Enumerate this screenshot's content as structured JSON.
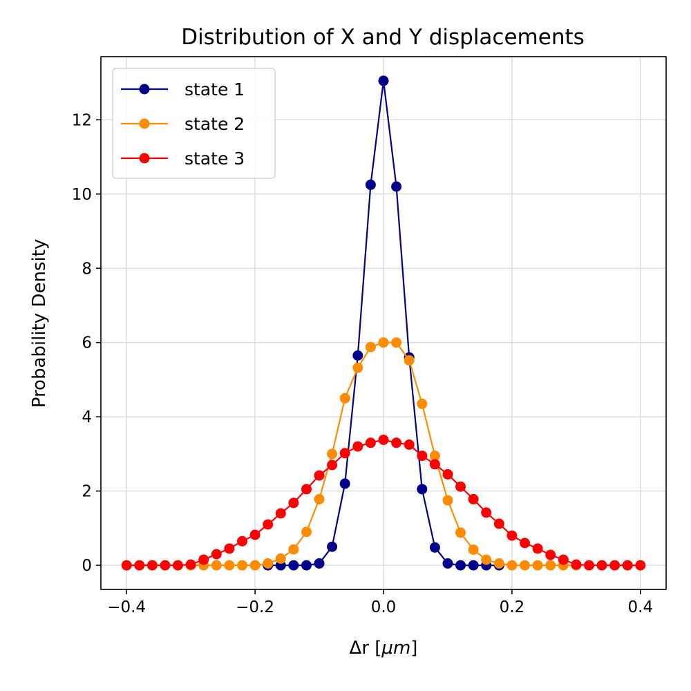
{
  "chart_data": {
    "type": "line",
    "title": "Distribution of X and Y displacements",
    "xlabel_main": "Δr [",
    "xlabel_unit": "μm",
    "xlabel_close": "]",
    "ylabel": "Probability Density",
    "xlim": [
      -0.44,
      0.44
    ],
    "ylim": [
      -0.65,
      13.7
    ],
    "xticks": [
      -0.4,
      -0.2,
      0.0,
      0.2,
      0.4
    ],
    "xtick_labels": [
      "−0.4",
      "−0.2",
      "0.0",
      "0.2",
      "0.4"
    ],
    "yticks": [
      0,
      2,
      4,
      6,
      8,
      10,
      12
    ],
    "ytick_labels": [
      "0",
      "2",
      "4",
      "6",
      "8",
      "10",
      "12"
    ],
    "grid": true,
    "legend_position": "upper-left",
    "series": [
      {
        "name": "state 1",
        "color": "#00008b",
        "x": [
          -0.18,
          -0.16,
          -0.14,
          -0.12,
          -0.1,
          -0.08,
          -0.06,
          -0.04,
          -0.02,
          0.0,
          0.02,
          0.04,
          0.06,
          0.08,
          0.1,
          0.12,
          0.14,
          0.16,
          0.18
        ],
        "y": [
          0.0,
          0.0,
          0.0,
          0.0,
          0.05,
          0.5,
          2.2,
          5.65,
          10.25,
          13.05,
          10.2,
          5.6,
          2.05,
          0.48,
          0.05,
          0.0,
          0.0,
          0.0,
          0.0
        ]
      },
      {
        "name": "state 2",
        "color": "#ff8c00",
        "x": [
          -0.3,
          -0.28,
          -0.26,
          -0.24,
          -0.22,
          -0.2,
          -0.18,
          -0.16,
          -0.14,
          -0.12,
          -0.1,
          -0.08,
          -0.06,
          -0.04,
          -0.02,
          0.0,
          0.02,
          0.04,
          0.06,
          0.08,
          0.1,
          0.12,
          0.14,
          0.16,
          0.18,
          0.2,
          0.22,
          0.24,
          0.26,
          0.28,
          0.3
        ],
        "y": [
          0.0,
          0.0,
          0.0,
          0.0,
          0.0,
          0.0,
          0.05,
          0.18,
          0.43,
          0.9,
          1.78,
          3.0,
          4.5,
          5.32,
          5.88,
          6.0,
          6.0,
          5.52,
          4.35,
          2.95,
          1.75,
          0.88,
          0.42,
          0.15,
          0.05,
          0.0,
          0.0,
          0.0,
          0.0,
          0.0,
          0.0
        ]
      },
      {
        "name": "state 3",
        "color": "#ff0000",
        "x": [
          -0.4,
          -0.38,
          -0.36,
          -0.34,
          -0.32,
          -0.3,
          -0.28,
          -0.26,
          -0.24,
          -0.22,
          -0.2,
          -0.18,
          -0.16,
          -0.14,
          -0.12,
          -0.1,
          -0.08,
          -0.06,
          -0.04,
          -0.02,
          0.0,
          0.02,
          0.04,
          0.06,
          0.08,
          0.1,
          0.12,
          0.14,
          0.16,
          0.18,
          0.2,
          0.22,
          0.24,
          0.26,
          0.28,
          0.3,
          0.32,
          0.34,
          0.36,
          0.38,
          0.4
        ],
        "y": [
          0.0,
          0.0,
          0.0,
          0.0,
          0.0,
          0.02,
          0.15,
          0.3,
          0.45,
          0.65,
          0.82,
          1.1,
          1.4,
          1.68,
          2.05,
          2.42,
          2.7,
          3.02,
          3.2,
          3.3,
          3.38,
          3.3,
          3.25,
          2.95,
          2.72,
          2.45,
          2.12,
          1.78,
          1.42,
          1.12,
          0.8,
          0.6,
          0.45,
          0.28,
          0.15,
          0.02,
          0.0,
          0.0,
          0.0,
          0.0,
          0.0
        ]
      }
    ]
  }
}
